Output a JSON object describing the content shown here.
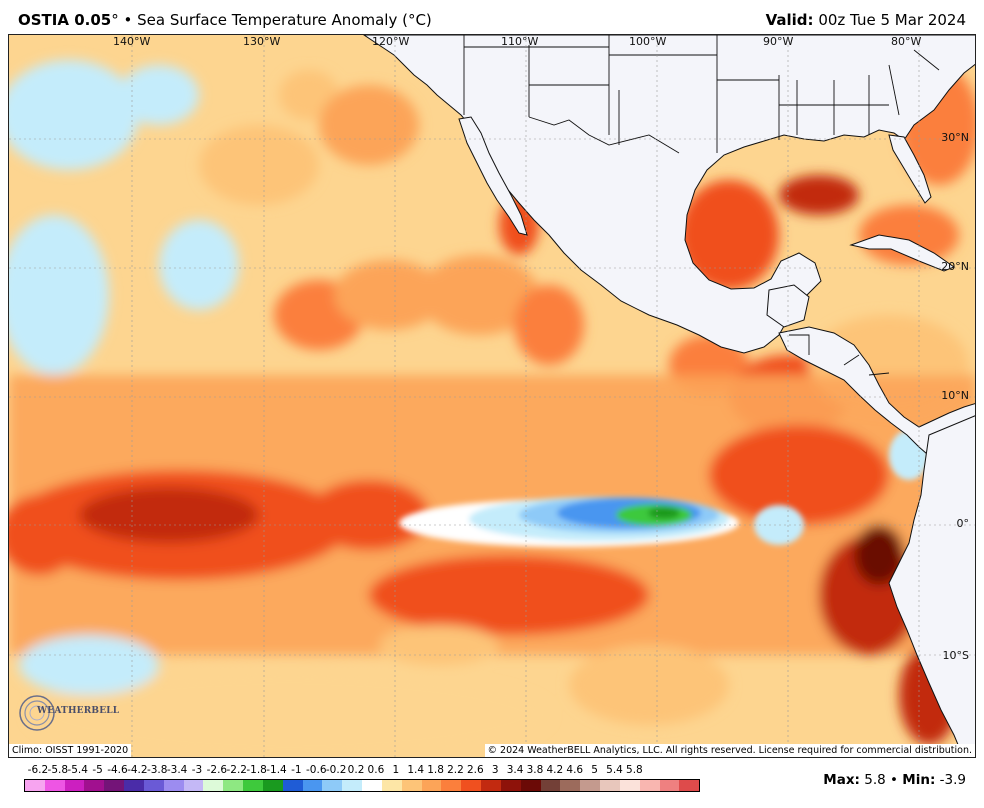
{
  "header": {
    "model": "OSTIA 0.05",
    "degree": "°",
    "separator": "•",
    "field": "Sea Surface Temperature Anomaly (°C)",
    "valid_label": "Valid:",
    "valid_time": "00z Tue 5 Mar 2024"
  },
  "map": {
    "longitude_labels": [
      "140°W",
      "130°W",
      "120°W",
      "110°W",
      "100°W",
      "90°W",
      "80°W"
    ],
    "latitude_labels": [
      "30°N",
      "20°N",
      "10°N",
      "0°",
      "10°S"
    ],
    "colors": {
      "land": "#f4f5fa",
      "borders": "#111111",
      "background_anomaly": "#fdd590"
    }
  },
  "footer": {
    "climo": "Climo: OISST 1991-2020",
    "copyright": "© 2024 WeatherBELL Analytics, LLC. All rights reserved. License required for commercial distribution.",
    "logo_text": "WEATHERBELL",
    "logo_sub": "Analytics LLC"
  },
  "legend": {
    "ticks": [
      "-6.2",
      "-5.8",
      "-5.4",
      "-5",
      "-4.6",
      "-4.2",
      "-3.8",
      "-3.4",
      "-3",
      "-2.6",
      "-2.2",
      "-1.8",
      "-1.4",
      "-1",
      "-0.6",
      "-0.2",
      "0.2",
      "0.6",
      "1",
      "1.4",
      "1.8",
      "2.2",
      "2.6",
      "3",
      "3.4",
      "3.8",
      "4.2",
      "4.6",
      "5",
      "5.4",
      "5.8"
    ],
    "colors": [
      "#f7a4f0",
      "#ee55e4",
      "#cc1fc0",
      "#a1108f",
      "#741478",
      "#4a2ca8",
      "#6a5ad6",
      "#9c8cf0",
      "#c4b8f6",
      "#ddfad9",
      "#8ee882",
      "#3ec93c",
      "#1a9a1f",
      "#1f5cd6",
      "#4a96f0",
      "#8ecaf8",
      "#c4ecfb",
      "#ffffff",
      "#fde6a6",
      "#fdc478",
      "#fca458",
      "#fb7f3c",
      "#f0501f",
      "#c22a10",
      "#8e120a",
      "#6b0a06",
      "#734037",
      "#9c6b5c",
      "#c49a8e",
      "#e8c7bc",
      "#fbe2da",
      "#f9b6b0",
      "#ef8080",
      "#de4b4b"
    ]
  },
  "stats": {
    "max_label": "Max:",
    "max_value": "5.8",
    "sep": "•",
    "min_label": "Min:",
    "min_value": "-3.9"
  }
}
